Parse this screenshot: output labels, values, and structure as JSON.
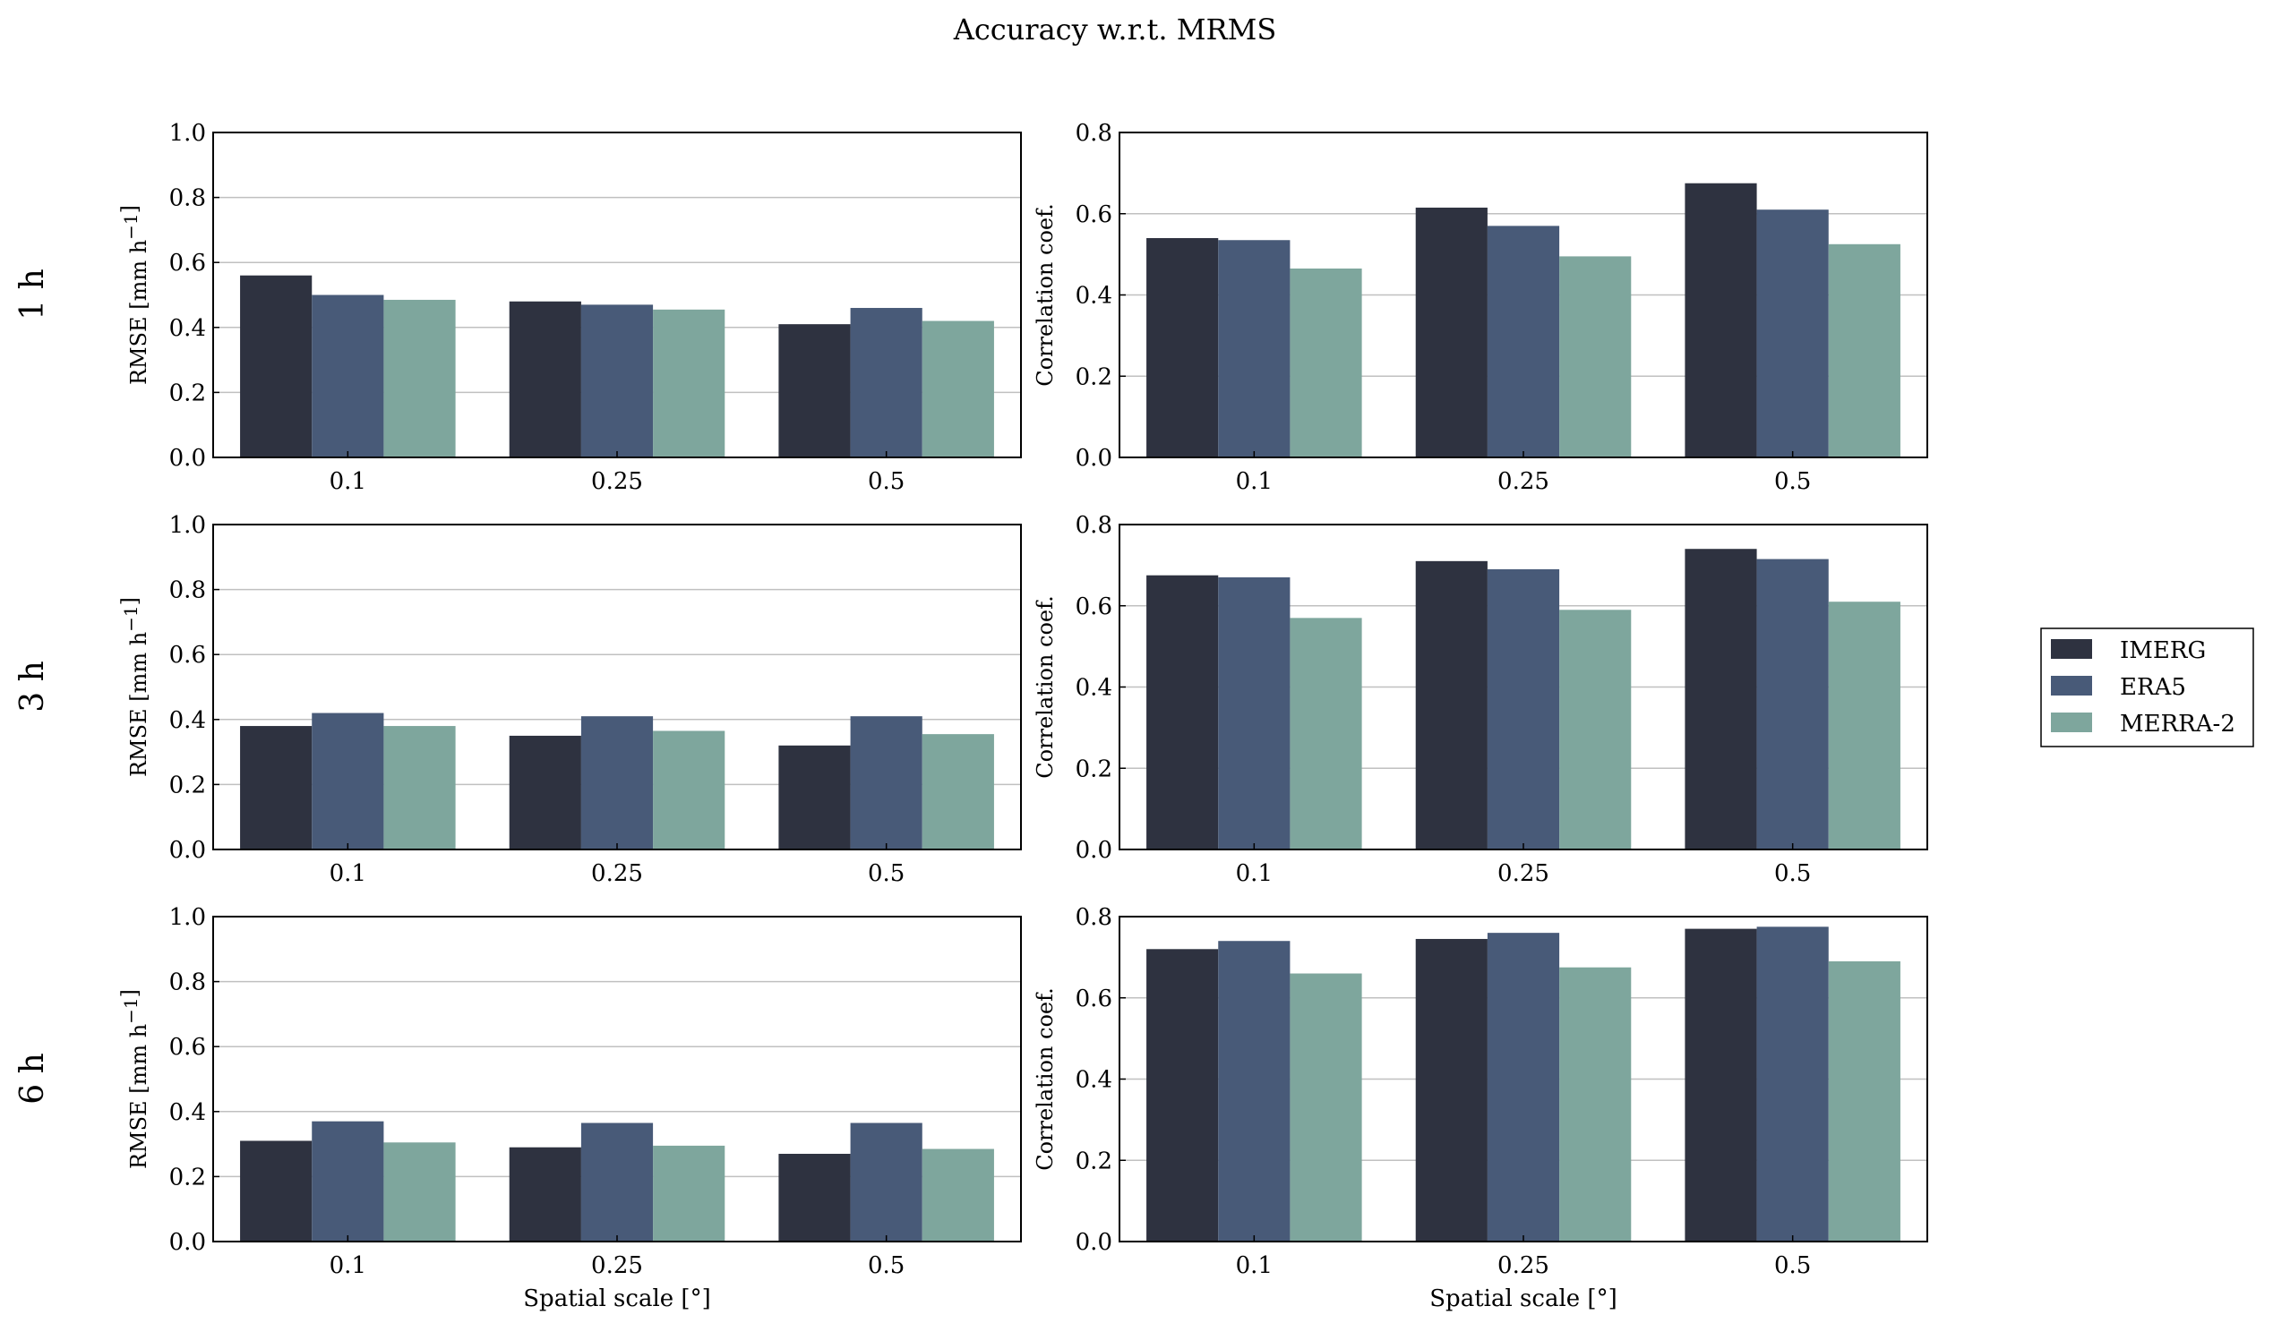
{
  "figure": {
    "title": "Accuracy w.r.t. MRMS"
  },
  "colors": {
    "IMERG": "#2e3240",
    "ERA5": "#485a78",
    "MERRA-2": "#7ea69d",
    "grid": "#c0c0c0"
  },
  "legend": {
    "position": "right",
    "entries": [
      "IMERG",
      "ERA5",
      "MERRA-2"
    ]
  },
  "rows": [
    "1 h",
    "3 h",
    "6 h"
  ],
  "chart_data": [
    {
      "type": "bar",
      "row": "1 h",
      "categories": [
        "0.1",
        "0.25",
        "0.5"
      ],
      "xlabel": "",
      "ylabel": "RMSE [mm h$^{-1}$]",
      "ylim": [
        0,
        1.0
      ],
      "yticks": [
        "0.0",
        "0.2",
        "0.4",
        "0.6",
        "0.8",
        "1.0"
      ],
      "grid": "y",
      "series": [
        {
          "name": "IMERG",
          "values": [
            0.56,
            0.48,
            0.41
          ]
        },
        {
          "name": "ERA5",
          "values": [
            0.5,
            0.47,
            0.46
          ]
        },
        {
          "name": "MERRA-2",
          "values": [
            0.485,
            0.455,
            0.42
          ]
        }
      ]
    },
    {
      "type": "bar",
      "row": "1 h",
      "categories": [
        "0.1",
        "0.25",
        "0.5"
      ],
      "xlabel": "",
      "ylabel": "Correlation coef.",
      "ylim": [
        0,
        0.8
      ],
      "yticks": [
        "0.0",
        "0.2",
        "0.4",
        "0.6",
        "0.8"
      ],
      "grid": "y",
      "series": [
        {
          "name": "IMERG",
          "values": [
            0.54,
            0.615,
            0.675
          ]
        },
        {
          "name": "ERA5",
          "values": [
            0.535,
            0.57,
            0.61
          ]
        },
        {
          "name": "MERRA-2",
          "values": [
            0.465,
            0.495,
            0.525
          ]
        }
      ]
    },
    {
      "type": "bar",
      "row": "3 h",
      "categories": [
        "0.1",
        "0.25",
        "0.5"
      ],
      "xlabel": "",
      "ylabel": "RMSE [mm h$^{-1}$]",
      "ylim": [
        0,
        1.0
      ],
      "yticks": [
        "0.0",
        "0.2",
        "0.4",
        "0.6",
        "0.8",
        "1.0"
      ],
      "grid": "y",
      "series": [
        {
          "name": "IMERG",
          "values": [
            0.38,
            0.35,
            0.32
          ]
        },
        {
          "name": "ERA5",
          "values": [
            0.42,
            0.41,
            0.41
          ]
        },
        {
          "name": "MERRA-2",
          "values": [
            0.38,
            0.365,
            0.355
          ]
        }
      ]
    },
    {
      "type": "bar",
      "row": "3 h",
      "categories": [
        "0.1",
        "0.25",
        "0.5"
      ],
      "xlabel": "",
      "ylabel": "Correlation coef.",
      "ylim": [
        0,
        0.8
      ],
      "yticks": [
        "0.0",
        "0.2",
        "0.4",
        "0.6",
        "0.8"
      ],
      "grid": "y",
      "series": [
        {
          "name": "IMERG",
          "values": [
            0.675,
            0.71,
            0.74
          ]
        },
        {
          "name": "ERA5",
          "values": [
            0.67,
            0.69,
            0.715
          ]
        },
        {
          "name": "MERRA-2",
          "values": [
            0.57,
            0.59,
            0.61
          ]
        }
      ]
    },
    {
      "type": "bar",
      "row": "6 h",
      "categories": [
        "0.1",
        "0.25",
        "0.5"
      ],
      "xlabel": "Spatial scale [$^\\circ$]",
      "ylabel": "RMSE [mm h$^{-1}$]",
      "ylim": [
        0,
        1.0
      ],
      "yticks": [
        "0.0",
        "0.2",
        "0.4",
        "0.6",
        "0.8",
        "1.0"
      ],
      "grid": "y",
      "series": [
        {
          "name": "IMERG",
          "values": [
            0.31,
            0.29,
            0.27
          ]
        },
        {
          "name": "ERA5",
          "values": [
            0.37,
            0.365,
            0.365
          ]
        },
        {
          "name": "MERRA-2",
          "values": [
            0.305,
            0.295,
            0.285
          ]
        }
      ]
    },
    {
      "type": "bar",
      "row": "6 h",
      "categories": [
        "0.1",
        "0.25",
        "0.5"
      ],
      "xlabel": "Spatial scale [$^\\circ$]",
      "ylabel": "Correlation coef.",
      "ylim": [
        0,
        0.8
      ],
      "yticks": [
        "0.0",
        "0.2",
        "0.4",
        "0.6",
        "0.8"
      ],
      "grid": "y",
      "series": [
        {
          "name": "IMERG",
          "values": [
            0.72,
            0.745,
            0.77
          ]
        },
        {
          "name": "ERA5",
          "values": [
            0.74,
            0.76,
            0.775
          ]
        },
        {
          "name": "MERRA-2",
          "values": [
            0.66,
            0.675,
            0.69
          ]
        }
      ]
    }
  ]
}
